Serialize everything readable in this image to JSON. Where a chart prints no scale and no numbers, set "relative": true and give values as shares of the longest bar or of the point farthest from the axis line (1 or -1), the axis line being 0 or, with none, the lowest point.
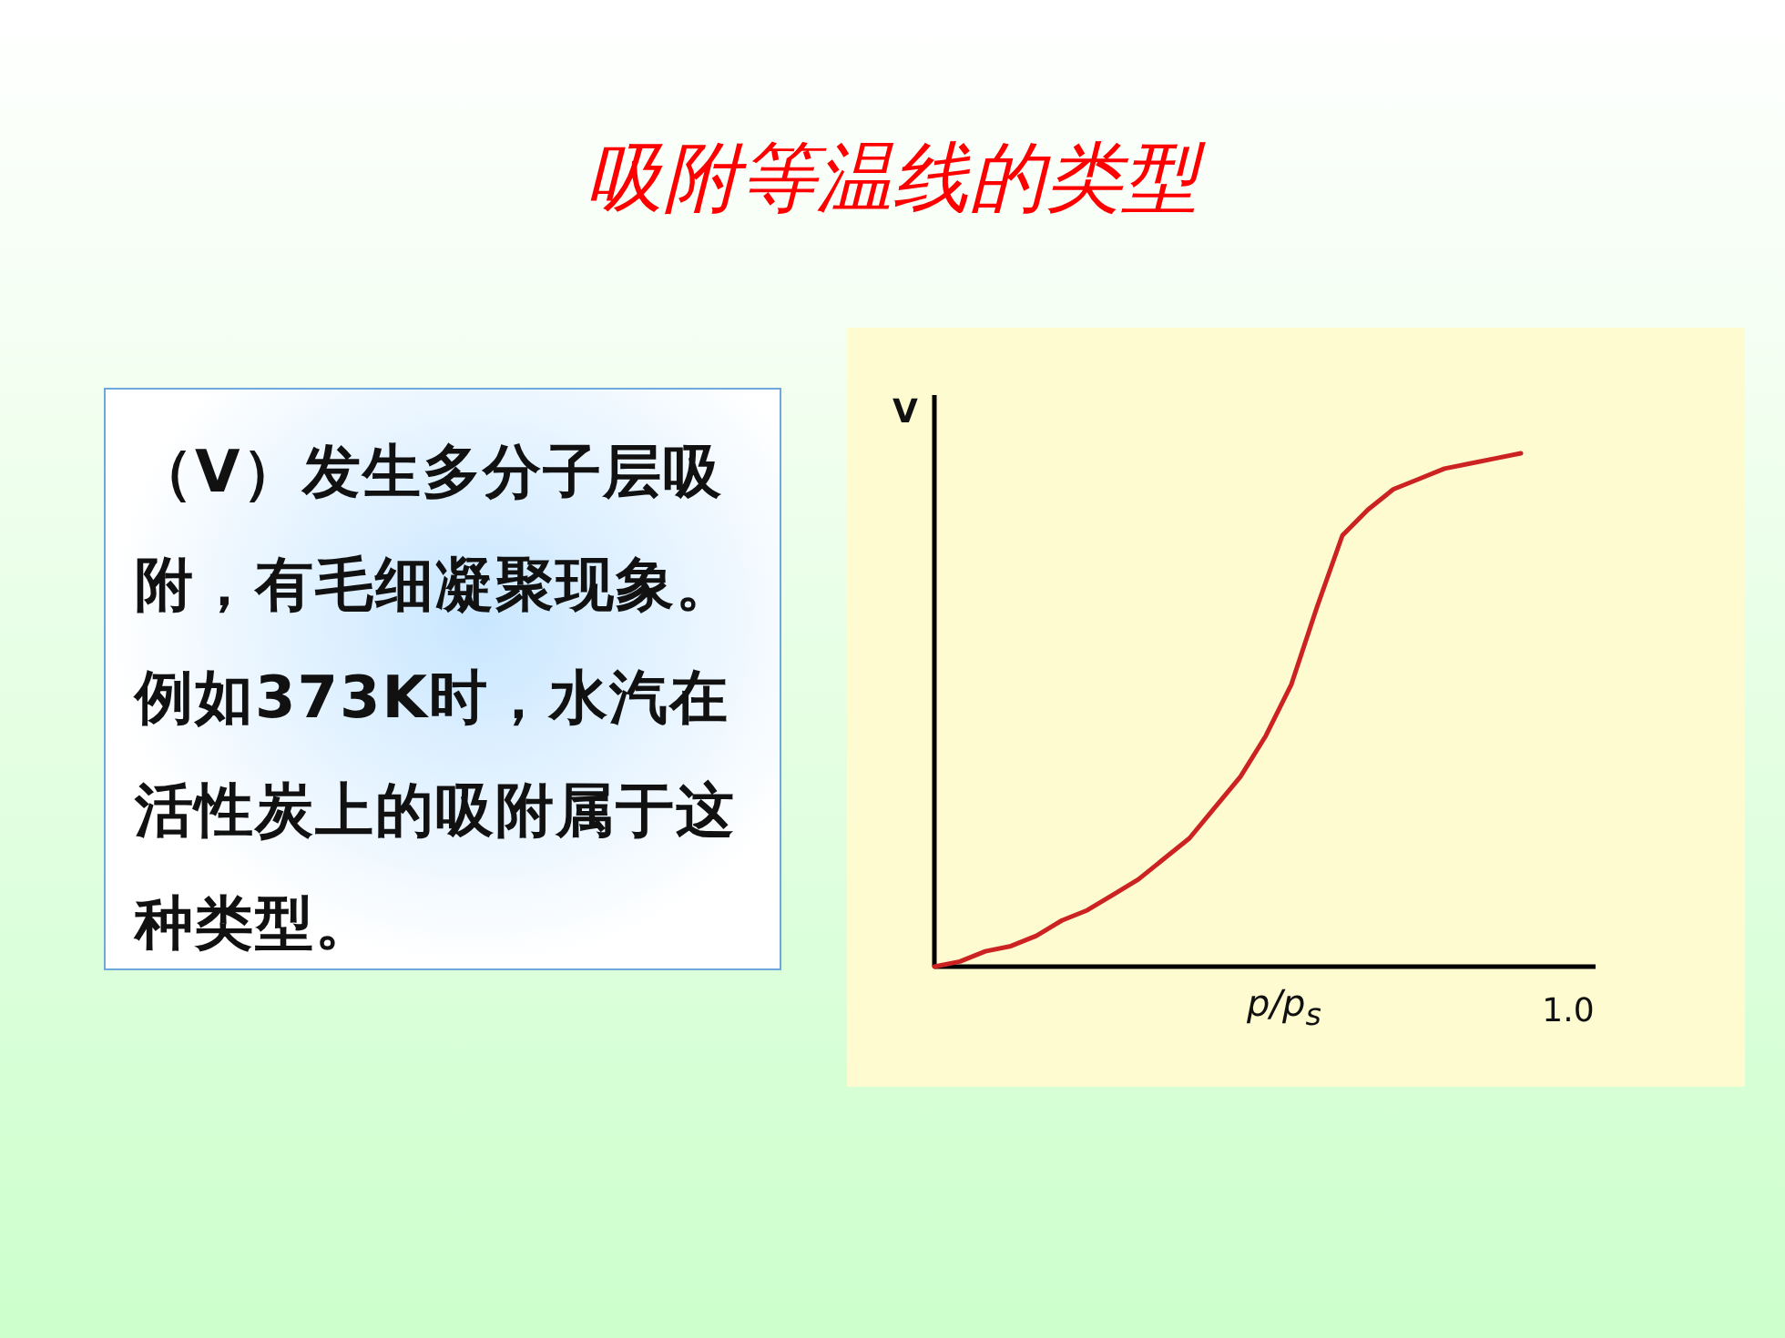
{
  "chart_data": {
    "type": "line",
    "title": "吸附等温线的类型",
    "xlabel": "p/p$_{s}$",
    "ylabel": "V",
    "annotations": [
      "（V）发生多分子层吸附，有毛细凝聚现象。例如373K时，水汽在活性炭上的吸附属于这种类型。",
      "1.0"
    ],
    "relative": true,
    "categories": [
      null,
      null,
      null,
      null,
      null,
      null,
      null,
      null,
      null,
      null,
      null,
      null,
      null,
      null,
      null,
      null,
      null,
      null,
      null,
      null,
      null,
      null,
      null,
      null
    ],
    "series": [
      {
        "color": "#cc2222",
        "values": [
          0,
          0.01,
          0.03,
          0.04,
          0.06,
          0.09,
          0.11,
          0.14,
          0.17,
          0.21,
          0.25,
          0.31,
          0.37,
          0.45,
          0.55,
          0.7,
          0.84,
          0.89,
          0.93,
          0.95,
          0.97,
          0.98,
          0.99,
          1.0
        ]
      }
    ]
  }
}
